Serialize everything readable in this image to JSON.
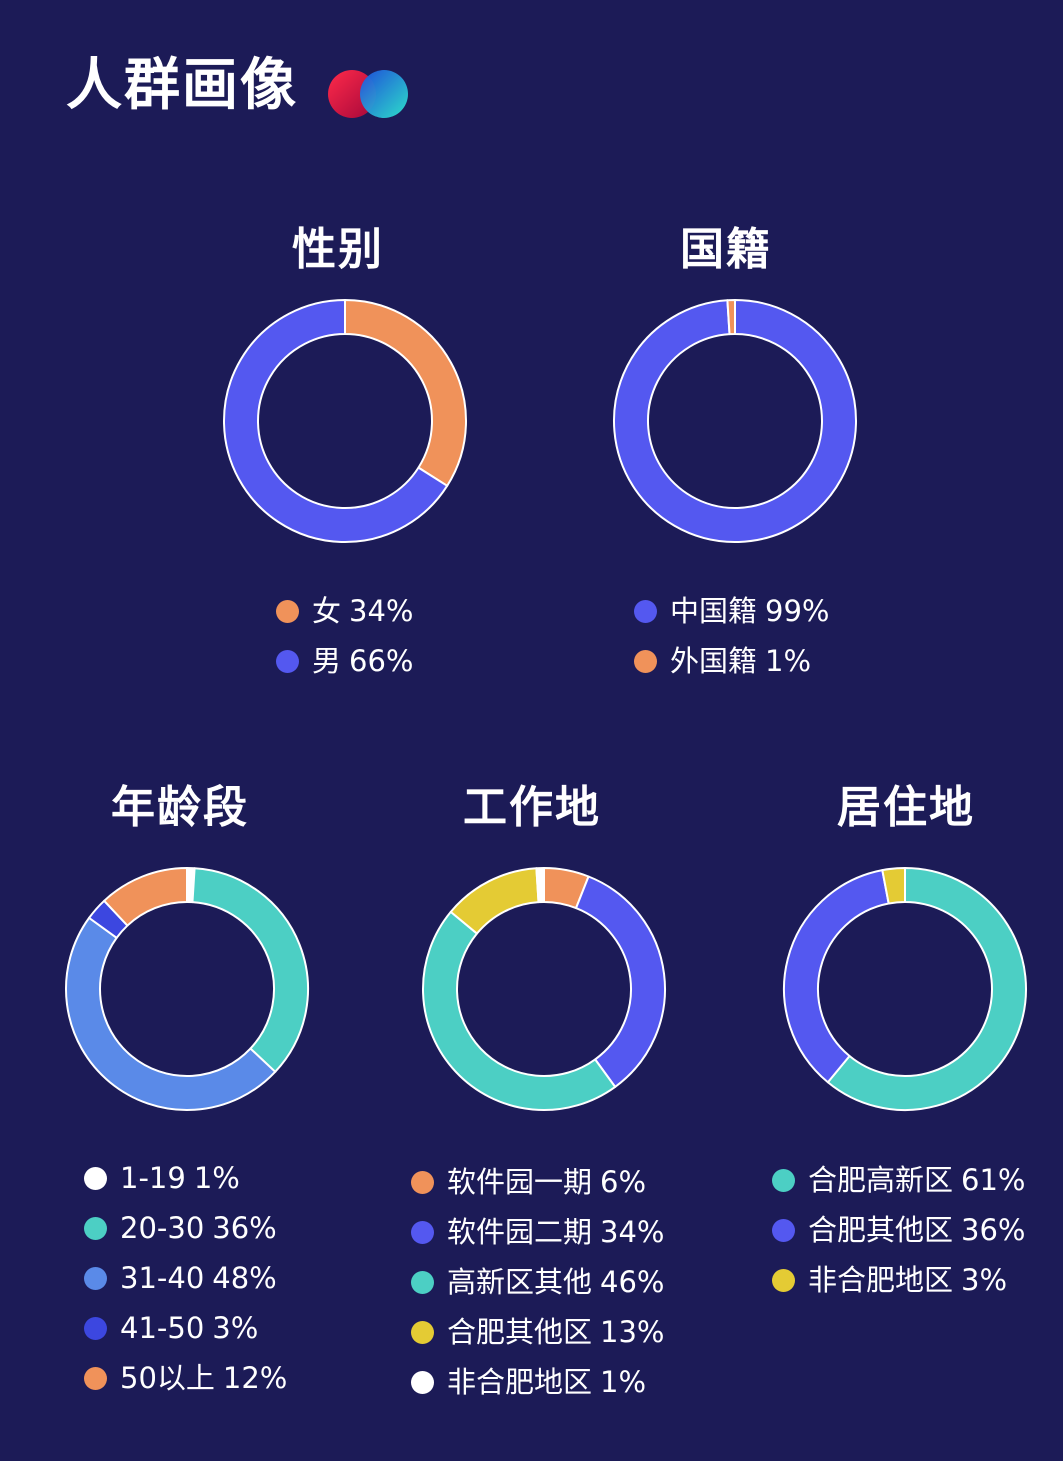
{
  "page_title": "人群画像",
  "colors": {
    "background": "#1c1b57",
    "orange": "#f0925a",
    "blue": "#5458f0",
    "teal": "#4ccfc4",
    "light_blue": "#5a8ae8",
    "dark_blue": "#3c47e0",
    "yellow": "#e4cb34",
    "white": "#ffffff"
  },
  "chart_data": [
    {
      "type": "pie",
      "title": "性别",
      "slices": [
        {
          "label": "女",
          "value": 34,
          "percent": "34%",
          "color": "#f0925a"
        },
        {
          "label": "男",
          "value": 66,
          "percent": "66%",
          "color": "#5458f0"
        }
      ]
    },
    {
      "type": "pie",
      "title": "国籍",
      "slices": [
        {
          "label": "中国籍",
          "value": 99,
          "percent": "99%",
          "color": "#5458f0"
        },
        {
          "label": "外国籍",
          "value": 1,
          "percent": "1%",
          "color": "#f0925a"
        }
      ]
    },
    {
      "type": "pie",
      "title": "年龄段",
      "slices": [
        {
          "label": "1-19",
          "value": 1,
          "percent": "1%",
          "color": "#ffffff"
        },
        {
          "label": "20-30",
          "value": 36,
          "percent": "36%",
          "color": "#4ccfc4"
        },
        {
          "label": "31-40",
          "value": 48,
          "percent": "48%",
          "color": "#5a8ae8"
        },
        {
          "label": "41-50",
          "value": 3,
          "percent": "3%",
          "color": "#3c47e0"
        },
        {
          "label": "50以上",
          "value": 12,
          "percent": "12%",
          "color": "#f0925a"
        }
      ]
    },
    {
      "type": "pie",
      "title": "工作地",
      "slices": [
        {
          "label": "软件园一期",
          "value": 6,
          "percent": "6%",
          "color": "#f0925a"
        },
        {
          "label": "软件园二期",
          "value": 34,
          "percent": "34%",
          "color": "#5458f0"
        },
        {
          "label": "高新区其他",
          "value": 46,
          "percent": "46%",
          "color": "#4ccfc4"
        },
        {
          "label": "合肥其他区",
          "value": 13,
          "percent": "13%",
          "color": "#e4cb34"
        },
        {
          "label": "非合肥地区",
          "value": 1,
          "percent": "1%",
          "color": "#ffffff"
        }
      ]
    },
    {
      "type": "pie",
      "title": "居住地",
      "slices": [
        {
          "label": "合肥高新区",
          "value": 61,
          "percent": "61%",
          "color": "#4ccfc4"
        },
        {
          "label": "合肥其他区",
          "value": 36,
          "percent": "36%",
          "color": "#5458f0"
        },
        {
          "label": "非合肥地区",
          "value": 3,
          "percent": "3%",
          "color": "#e4cb34"
        }
      ]
    }
  ]
}
